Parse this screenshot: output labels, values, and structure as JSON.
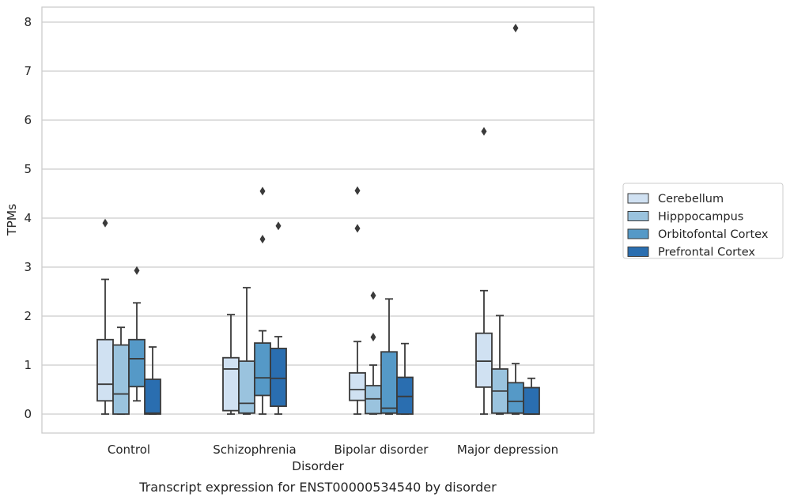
{
  "caption": "Transcript expression for ENST00000534540 by disorder",
  "chart_data": {
    "type": "box",
    "xlabel": "Disorder",
    "ylabel": "TPMs",
    "ylim": [
      -0.38,
      8.3
    ],
    "yticks": [
      "0",
      "1",
      "2",
      "3",
      "4",
      "5",
      "6",
      "7",
      "8"
    ],
    "grid": "horizontal",
    "legend_position": "right",
    "categories": [
      "Control",
      "Schizophrenia",
      "Bipolar disorder",
      "Major depression"
    ],
    "series": [
      {
        "name": "Cerebellum",
        "color": "#d0e1f2",
        "boxes": [
          {
            "whisker_low": 0,
            "q1": 0.27,
            "median": 0.61,
            "q3": 1.52,
            "whisker_high": 2.75,
            "outliers": [
              3.9
            ]
          },
          {
            "whisker_low": 0,
            "q1": 0.07,
            "median": 0.92,
            "q3": 1.15,
            "whisker_high": 2.03,
            "outliers": []
          },
          {
            "whisker_low": 0,
            "q1": 0.28,
            "median": 0.5,
            "q3": 0.84,
            "whisker_high": 1.48,
            "outliers": [
              3.79,
              4.56
            ]
          },
          {
            "whisker_low": 0,
            "q1": 0.55,
            "median": 1.08,
            "q3": 1.65,
            "whisker_high": 2.52,
            "outliers": [
              5.77
            ]
          }
        ]
      },
      {
        "name": "Hipppocampus",
        "color": "#9ac3de",
        "boxes": [
          {
            "whisker_low": 0,
            "q1": 0,
            "median": 0.41,
            "q3": 1.41,
            "whisker_high": 1.77,
            "outliers": []
          },
          {
            "whisker_low": 0,
            "q1": 0.02,
            "median": 0.22,
            "q3": 1.08,
            "whisker_high": 2.58,
            "outliers": []
          },
          {
            "whisker_low": 0,
            "q1": 0.01,
            "median": 0.31,
            "q3": 0.58,
            "whisker_high": 1.0,
            "outliers": [
              1.57,
              2.42
            ]
          },
          {
            "whisker_low": 0,
            "q1": 0.02,
            "median": 0.47,
            "q3": 0.92,
            "whisker_high": 2.01,
            "outliers": []
          }
        ]
      },
      {
        "name": "Orbitofontal Cortex",
        "color": "#5599c7",
        "boxes": [
          {
            "whisker_low": 0.27,
            "q1": 0.56,
            "median": 1.13,
            "q3": 1.52,
            "whisker_high": 2.27,
            "outliers": [
              2.93
            ]
          },
          {
            "whisker_low": 0,
            "q1": 0.38,
            "median": 0.74,
            "q3": 1.45,
            "whisker_high": 1.7,
            "outliers": [
              3.57,
              4.55
            ]
          },
          {
            "whisker_low": 0,
            "q1": 0.02,
            "median": 0.12,
            "q3": 1.27,
            "whisker_high": 2.35,
            "outliers": []
          },
          {
            "whisker_low": 0,
            "q1": 0.02,
            "median": 0.26,
            "q3": 0.64,
            "whisker_high": 1.03,
            "outliers": [
              7.88
            ]
          }
        ]
      },
      {
        "name": "Prefrontal Cortex",
        "color": "#2a6eb0",
        "boxes": [
          {
            "whisker_low": 0,
            "q1": 0,
            "median": 0.02,
            "q3": 0.71,
            "whisker_high": 1.37,
            "outliers": []
          },
          {
            "whisker_low": 0,
            "q1": 0.16,
            "median": 0.73,
            "q3": 1.34,
            "whisker_high": 1.58,
            "outliers": [
              3.84
            ]
          },
          {
            "whisker_low": 0,
            "q1": 0,
            "median": 0.36,
            "q3": 0.75,
            "whisker_high": 1.44,
            "outliers": []
          },
          {
            "whisker_low": 0,
            "q1": 0,
            "median": 0,
            "q3": 0.54,
            "whisker_high": 0.73,
            "outliers": []
          }
        ]
      }
    ]
  }
}
